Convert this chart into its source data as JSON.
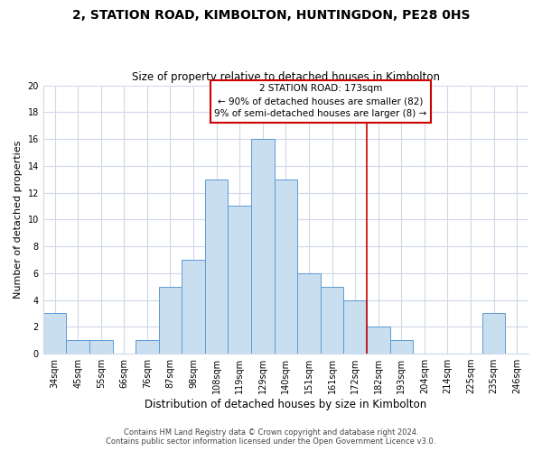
{
  "title": "2, STATION ROAD, KIMBOLTON, HUNTINGDON, PE28 0HS",
  "subtitle": "Size of property relative to detached houses in Kimbolton",
  "xlabel": "Distribution of detached houses by size in Kimbolton",
  "ylabel": "Number of detached properties",
  "bar_labels": [
    "34sqm",
    "45sqm",
    "55sqm",
    "66sqm",
    "76sqm",
    "87sqm",
    "98sqm",
    "108sqm",
    "119sqm",
    "129sqm",
    "140sqm",
    "151sqm",
    "161sqm",
    "172sqm",
    "182sqm",
    "193sqm",
    "204sqm",
    "214sqm",
    "225sqm",
    "235sqm",
    "246sqm"
  ],
  "bar_values": [
    3,
    1,
    1,
    0,
    1,
    5,
    7,
    13,
    11,
    16,
    13,
    6,
    5,
    4,
    2,
    1,
    0,
    0,
    0,
    3,
    0
  ],
  "bar_color": "#c9dff0",
  "bar_edge_color": "#5b9bd5",
  "vline_color": "#cc0000",
  "annotation_title": "2 STATION ROAD: 173sqm",
  "annotation_line1": "← 90% of detached houses are smaller (82)",
  "annotation_line2": "9% of semi-detached houses are larger (8) →",
  "annotation_box_color": "#ffffff",
  "annotation_box_edge": "#cc0000",
  "ylim": [
    0,
    20
  ],
  "yticks": [
    0,
    2,
    4,
    6,
    8,
    10,
    12,
    14,
    16,
    18,
    20
  ],
  "footer1": "Contains HM Land Registry data © Crown copyright and database right 2024.",
  "footer2": "Contains public sector information licensed under the Open Government Licence v3.0.",
  "background_color": "#ffffff",
  "grid_color": "#d0d8e8",
  "title_fontsize": 10,
  "subtitle_fontsize": 8.5,
  "xlabel_fontsize": 8.5,
  "ylabel_fontsize": 8,
  "tick_fontsize": 7,
  "footer_fontsize": 6,
  "annot_fontsize": 7.5
}
